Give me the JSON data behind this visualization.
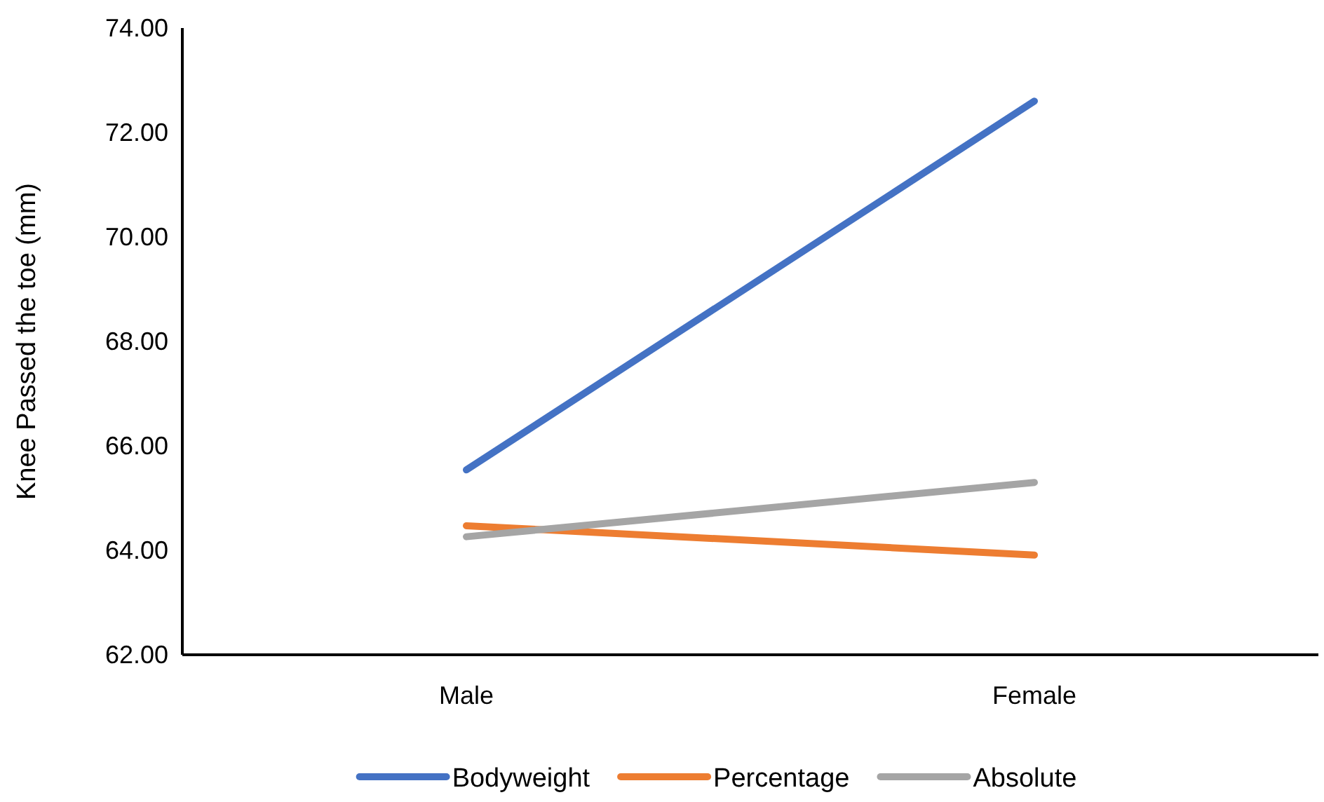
{
  "chart_data": {
    "type": "line",
    "ylabel": "Knee Passed the toe (mm)",
    "categories": [
      "Male",
      "Female"
    ],
    "series": [
      {
        "name": "Bodyweight",
        "color": "#4472c4",
        "values": [
          65.54,
          72.6
        ]
      },
      {
        "name": "Percentage",
        "color": "#ed7d31",
        "values": [
          64.47,
          63.91
        ]
      },
      {
        "name": "Absolute",
        "color": "#a5a5a5",
        "values": [
          64.26,
          65.3
        ]
      }
    ],
    "ylim": [
      62,
      74
    ],
    "yticks": [
      {
        "value": 62,
        "label": "62.00"
      },
      {
        "value": 64,
        "label": "64.00"
      },
      {
        "value": 66,
        "label": "66.00"
      },
      {
        "value": 68,
        "label": "68.00"
      },
      {
        "value": 70,
        "label": "70.00"
      },
      {
        "value": 72,
        "label": "72.00"
      },
      {
        "value": 74,
        "label": "74.00"
      }
    ],
    "grid": false,
    "legend": "bottom",
    "marker": "none",
    "line_style": "solid"
  }
}
